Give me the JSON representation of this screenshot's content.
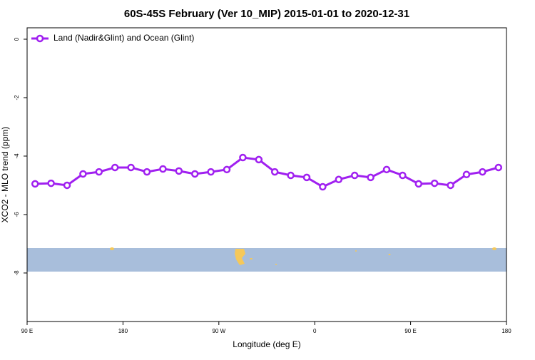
{
  "chart_data": {
    "type": "line",
    "title": "60S-45S February (Ver 10_MIP)   2015-01-01 to 2020-12-31",
    "xlabel": "Longitude (deg E)",
    "ylabel": "XCO2 - MLO trend (ppm)",
    "x": [
      97.5,
      112.5,
      127.5,
      142.5,
      157.5,
      172.5,
      187.5,
      202.5,
      217.5,
      232.5,
      247.5,
      262.5,
      277.5,
      292.5,
      307.5,
      322.5,
      337.5,
      352.5,
      367.5,
      382.5,
      397.5,
      412.5,
      427.5,
      442.5,
      457.5,
      472.5,
      487.5,
      502.5,
      517.5,
      532.5
    ],
    "series": [
      {
        "name": "Land (Nadir&Glint) and Ocean (Glint)",
        "color": "#a020f0",
        "values": [
          -4.95,
          -4.93,
          -5.0,
          -4.61,
          -4.54,
          -4.39,
          -4.39,
          -4.54,
          -4.44,
          -4.51,
          -4.61,
          -4.54,
          -4.46,
          -4.05,
          -4.12,
          -4.54,
          -4.66,
          -4.73,
          -5.05,
          -4.8,
          -4.66,
          -4.73,
          -4.46,
          -4.66,
          -4.95,
          -4.93,
          -5.0,
          -4.63,
          -4.54,
          -4.39
        ]
      }
    ],
    "xlim": [
      90,
      540
    ],
    "xticks": [
      {
        "value": 90,
        "label": "90 E"
      },
      180,
      {
        "value": 270,
        "label": "90 W"
      },
      {
        "value": 360,
        "label": "0"
      },
      {
        "value": 450,
        "label": "90 E"
      },
      {
        "value": 540,
        "label": "180"
      }
    ],
    "ylim": [
      -9.66,
      0.39
    ],
    "yticks": [
      0,
      -2,
      -4,
      -6,
      -8
    ],
    "legend": "top-left"
  }
}
